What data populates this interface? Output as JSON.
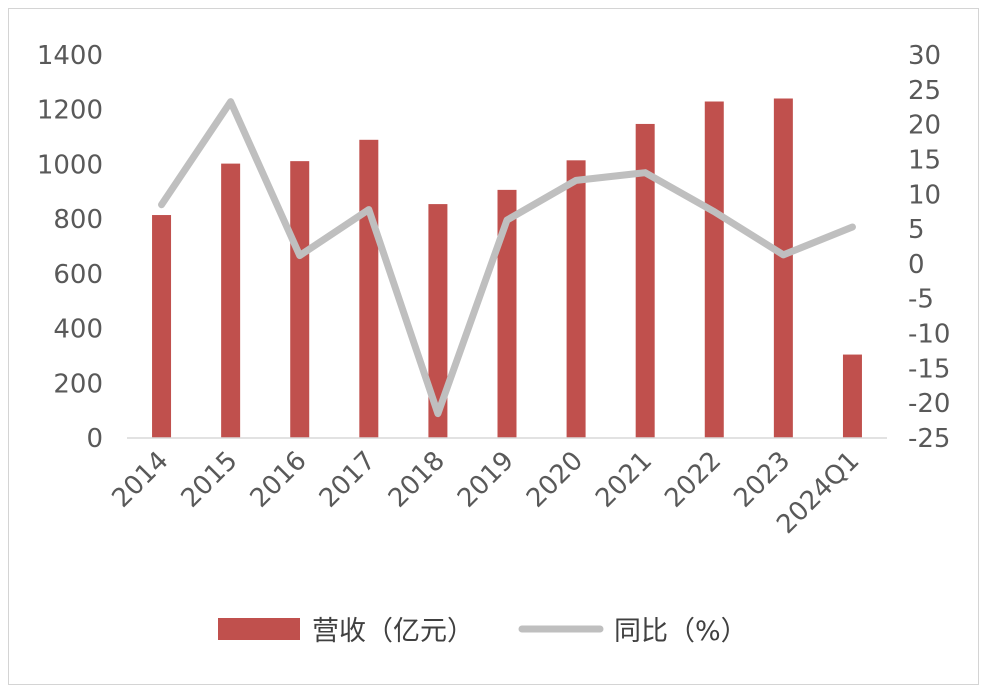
{
  "chart_data": {
    "type": "bar+line",
    "categories": [
      "2014",
      "2015",
      "2016",
      "2017",
      "2018",
      "2019",
      "2020",
      "2021",
      "2022",
      "2023",
      "2024Q1"
    ],
    "series": [
      {
        "name": "营收（亿元）",
        "type": "bar",
        "axis": "left",
        "color": "#c0504d",
        "values": [
          815,
          1003,
          1012,
          1090,
          855,
          907,
          1015,
          1148,
          1230,
          1241,
          305
        ]
      },
      {
        "name": "同比（%）",
        "type": "line",
        "axis": "right",
        "color": "#bfbfbf",
        "values": [
          8.5,
          23.3,
          1.2,
          7.8,
          -21.5,
          6.3,
          12.0,
          13.1,
          7.5,
          1.3,
          5.3
        ]
      }
    ],
    "y_left": {
      "min": 0,
      "max": 1400,
      "ticks": [
        0,
        200,
        400,
        600,
        800,
        1000,
        1200,
        1400
      ]
    },
    "y_right": {
      "min": -25,
      "max": 30,
      "ticks": [
        -25,
        -20,
        -15,
        -10,
        -5,
        0,
        5,
        10,
        15,
        20,
        25,
        30
      ]
    },
    "legend": {
      "position": "bottom"
    },
    "grid": false
  }
}
